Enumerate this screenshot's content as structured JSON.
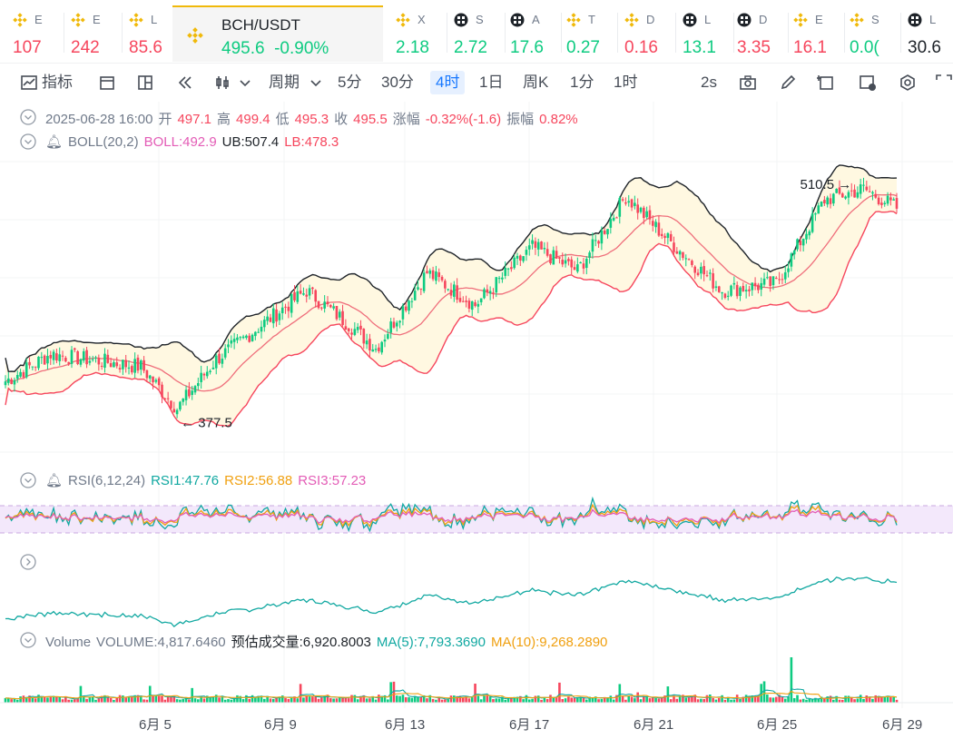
{
  "tickers": [
    {
      "name": "E",
      "price": "107",
      "dir": "dn",
      "icon": "binance-icon"
    },
    {
      "name": "E",
      "price": "242",
      "dir": "dn",
      "icon": "binance-icon"
    },
    {
      "name": "L",
      "price": "85.6",
      "dir": "dn",
      "icon": "binance-icon"
    },
    {
      "name": "X",
      "price": "2.18",
      "dir": "up",
      "icon": "binance-icon"
    },
    {
      "name": "S",
      "price": "2.72",
      "dir": "up",
      "icon": "checker-icon"
    },
    {
      "name": "A",
      "price": "17.6",
      "dir": "up",
      "icon": "checker-icon"
    },
    {
      "name": "T",
      "price": "0.27",
      "dir": "up",
      "icon": "binance-icon"
    },
    {
      "name": "D",
      "price": "0.16",
      "dir": "dn",
      "icon": "binance-icon"
    },
    {
      "name": "L",
      "price": "13.1",
      "dir": "up",
      "icon": "checker-icon"
    },
    {
      "name": "D",
      "price": "3.35",
      "dir": "dn",
      "icon": "checker-icon"
    },
    {
      "name": "E",
      "price": "16.1",
      "dir": "dn",
      "icon": "binance-icon"
    },
    {
      "name": "S",
      "price": "0.0(",
      "dir": "up",
      "icon": "binance-icon"
    },
    {
      "name": "L",
      "price": "30.6",
      "dir": "nt",
      "icon": "checker-icon"
    }
  ],
  "active_pair": {
    "name": "BCH/USDT",
    "price": "495.6",
    "change": "-0.90%"
  },
  "toolbar": {
    "indicators": "指标",
    "period": "周期",
    "intervals": [
      "5分",
      "30分",
      "4时",
      "1日",
      "周K",
      "1分",
      "1时"
    ],
    "active_interval": "4时",
    "refresh": "2s"
  },
  "ohlc": {
    "date": "2025-06-28 16:00",
    "open_label": "开",
    "open": "497.1",
    "high_label": "高",
    "high": "499.4",
    "low_label": "低",
    "low": "495.3",
    "close_label": "收",
    "close": "495.5",
    "change_label": "涨幅",
    "change": "-0.32%(-1.6)",
    "amp_label": "振幅",
    "amp": "0.82%"
  },
  "boll": {
    "name": "BOLL(20,2)",
    "boll": "BOLL:492.9",
    "ub": "UB:507.4",
    "lb": "LB:478.3"
  },
  "rsi": {
    "name": "RSI(6,12,24)",
    "rsi1": "RSI1:47.76",
    "rsi2": "RSI2:56.88",
    "rsi3": "RSI3:57.23"
  },
  "volume": {
    "name": "Volume",
    "value": "VOLUME:4,817.6460",
    "est": "预估成交量:6,920.8003",
    "ma5": "MA(5):7,793.3690",
    "ma10": "MA(10):9,268.2890"
  },
  "chart_data": {
    "type": "candlestick",
    "x_labels": [
      "6月 5",
      "6月 9",
      "6月 13",
      "6月 17",
      "6月 21",
      "6月 25",
      "6月 29"
    ],
    "annotations": [
      {
        "text": "510.5",
        "kind": "high"
      },
      {
        "text": "377.5",
        "kind": "low"
      }
    ],
    "close_anchors": [
      {
        "i": 0,
        "c": 400
      },
      {
        "i": 15,
        "c": 415
      },
      {
        "i": 45,
        "c": 408
      },
      {
        "i": 57,
        "c": 385
      },
      {
        "i": 70,
        "c": 412
      },
      {
        "i": 100,
        "c": 450
      },
      {
        "i": 115,
        "c": 430
      },
      {
        "i": 123,
        "c": 418
      },
      {
        "i": 140,
        "c": 460
      },
      {
        "i": 156,
        "c": 442
      },
      {
        "i": 175,
        "c": 474
      },
      {
        "i": 190,
        "c": 461
      },
      {
        "i": 206,
        "c": 502
      },
      {
        "i": 220,
        "c": 478
      },
      {
        "i": 238,
        "c": 450
      },
      {
        "i": 256,
        "c": 454
      },
      {
        "i": 272,
        "c": 500
      },
      {
        "i": 285,
        "c": 506
      },
      {
        "i": 296,
        "c": 495.5
      }
    ],
    "price_range": [
      360,
      520
    ],
    "colors": {
      "up": "#0ecb81",
      "down": "#f6465d",
      "boll_mid": "#ef6e7b",
      "boll_band": "#1e2329",
      "boll_low": "#f6465d",
      "band_fill": "#fff8e1",
      "rsi1": "#11a8a1",
      "rsi2": "#f0a010",
      "rsi3": "#e35cb6"
    }
  }
}
